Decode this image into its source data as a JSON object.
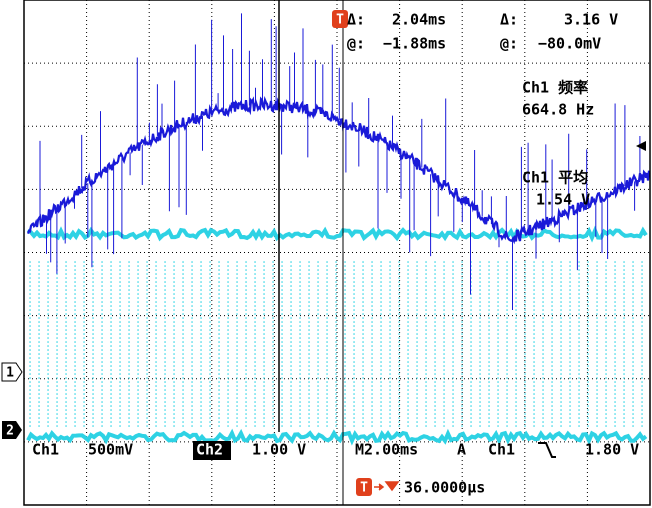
{
  "cursor_readout": {
    "delta_time_label": "Δ:",
    "delta_time": "2.04ms",
    "delta_voltage_label": "Δ:",
    "delta_voltage": "3.16 V",
    "at_time_label": "@:",
    "at_time": "−1.88ms",
    "at_voltage_label": "@:",
    "at_voltage": "−80.0mV"
  },
  "measurements": [
    {
      "label": "Ch1 频率",
      "value": "664.8 Hz"
    },
    {
      "label": "Ch1 平均",
      "value": "1.54 V"
    }
  ],
  "channel_markers": [
    "1",
    "2"
  ],
  "trigger_marker": "T",
  "status_bar": {
    "ch1": "Ch1",
    "ch1_scale": "500mV",
    "ch2": "Ch2",
    "ch2_scale": "1.00 V",
    "timebase": "M2.00ms",
    "trigger_mode": "A",
    "trigger_source": "Ch1",
    "trigger_level": "1.80 V"
  },
  "trigger_position": "36.0000µs"
}
